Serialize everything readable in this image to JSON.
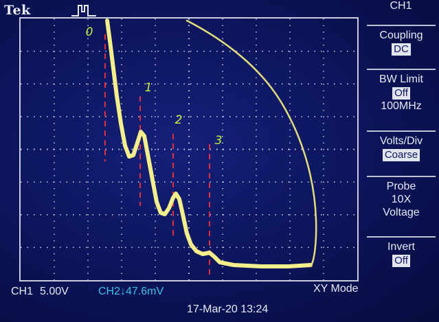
{
  "brand": "Tek",
  "menu": {
    "title": "CH1",
    "coupling": {
      "label": "Coupling",
      "value": "DC"
    },
    "bw_limit": {
      "label": "BW Limit",
      "value": "Off",
      "sub": "100MHz"
    },
    "volts_div": {
      "label": "Volts/Div",
      "value": "Coarse"
    },
    "probe": {
      "label": "Probe",
      "line1": "10X",
      "line2": "Voltage"
    },
    "invert": {
      "label": "Invert",
      "value": "Off"
    }
  },
  "status": {
    "ch1_name": "CH1",
    "ch1_scale": "5.00V",
    "ch2": "CH2↓47.6mV",
    "mode": "XY Mode",
    "datetime": "17-Mar-20 13:24"
  },
  "annotations": [
    "0",
    "1",
    "2",
    "3"
  ],
  "colors": {
    "trace": "#f4ef8a",
    "marker": "#e0303c",
    "annotation": "#c8f03c",
    "grid": "#d8dbe8"
  }
}
